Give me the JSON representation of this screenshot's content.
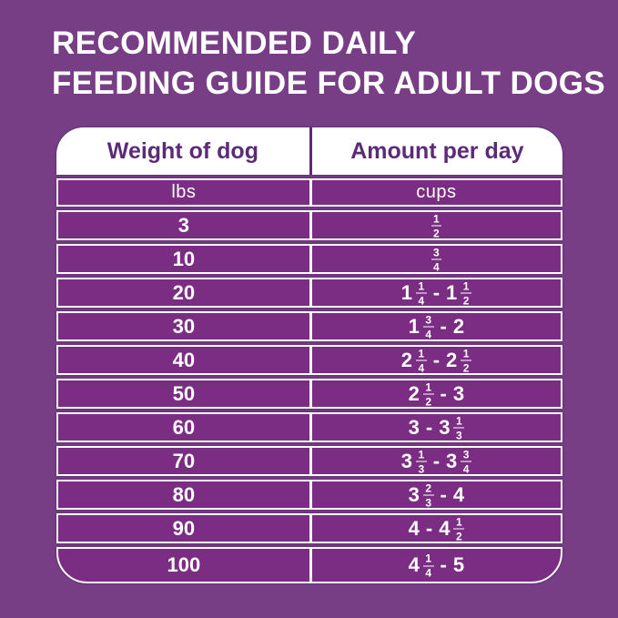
{
  "title": {
    "line1": "RECOMMENDED DAILY",
    "line2": "FEEDING GUIDE FOR ADULT DOGS"
  },
  "colors": {
    "background": "#773E86",
    "row_fill": "#7B2D83",
    "header_text": "#5C2B77",
    "row_text": "#FFFFFF",
    "border": "#FFFFFF"
  },
  "table": {
    "header": {
      "col1": "Weight of dog",
      "col2": "Amount per day"
    },
    "units": {
      "col1": "lbs",
      "col2": "cups"
    },
    "rows": [
      {
        "weight": "3",
        "amount": "1/2"
      },
      {
        "weight": "10",
        "amount": "3/4"
      },
      {
        "weight": "20",
        "amount": "1 1/4 - 1 1/2"
      },
      {
        "weight": "30",
        "amount": "1 3/4 - 2"
      },
      {
        "weight": "40",
        "amount": "2 1/4 - 2 1/2"
      },
      {
        "weight": "50",
        "amount": "2 1/2 - 3"
      },
      {
        "weight": "60",
        "amount": "3 - 3 1/3"
      },
      {
        "weight": "70",
        "amount": "3 1/3 - 3 3/4"
      },
      {
        "weight": "80",
        "amount": "3 2/3 - 4"
      },
      {
        "weight": "90",
        "amount": "4 - 4 1/2"
      },
      {
        "weight": "100",
        "amount": "4 1/4 - 5"
      }
    ]
  },
  "chart_data": {
    "type": "table",
    "title": "RECOMMENDED DAILY FEEDING GUIDE FOR ADULT DOGS",
    "columns": [
      "Weight of dog (lbs)",
      "Amount per day (cups)"
    ],
    "rows": [
      {
        "weight_lbs": 3,
        "cups_min": 0.5,
        "cups_max": 0.5,
        "display": "1/2"
      },
      {
        "weight_lbs": 10,
        "cups_min": 0.75,
        "cups_max": 0.75,
        "display": "3/4"
      },
      {
        "weight_lbs": 20,
        "cups_min": 1.25,
        "cups_max": 1.5,
        "display": "1 1/4 - 1 1/2"
      },
      {
        "weight_lbs": 30,
        "cups_min": 1.75,
        "cups_max": 2,
        "display": "1 3/4 - 2"
      },
      {
        "weight_lbs": 40,
        "cups_min": 2.25,
        "cups_max": 2.5,
        "display": "2 1/4 - 2 1/2"
      },
      {
        "weight_lbs": 50,
        "cups_min": 2.5,
        "cups_max": 3,
        "display": "2 1/2 - 3"
      },
      {
        "weight_lbs": 60,
        "cups_min": 3,
        "cups_max": 3.333,
        "display": "3 - 3 1/3"
      },
      {
        "weight_lbs": 70,
        "cups_min": 3.333,
        "cups_max": 3.75,
        "display": "3 1/3 - 3 3/4"
      },
      {
        "weight_lbs": 80,
        "cups_min": 3.667,
        "cups_max": 4,
        "display": "3 2/3 - 4"
      },
      {
        "weight_lbs": 90,
        "cups_min": 4,
        "cups_max": 4.5,
        "display": "4 - 4 1/2"
      },
      {
        "weight_lbs": 100,
        "cups_min": 4.25,
        "cups_max": 5,
        "display": "4 1/4 - 5"
      }
    ]
  }
}
